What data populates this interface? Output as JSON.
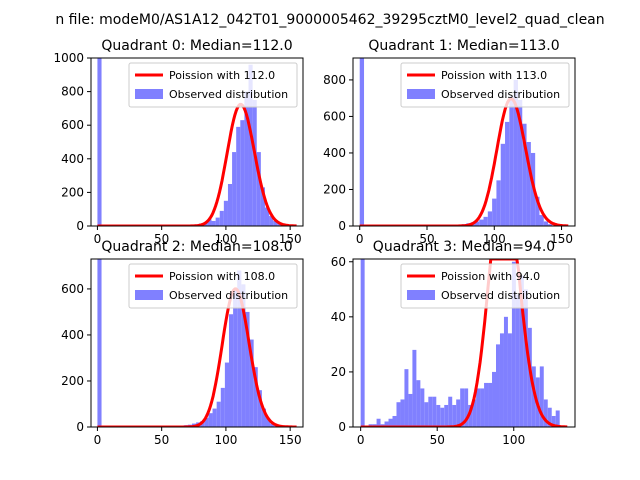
{
  "figure_title": "n file: modeM0/AS1A12_042T01_9000005462_39295cztM0_level2_quad_clean",
  "colors": {
    "fit": "#ff0000",
    "hist": "#8080ff",
    "axis": "#000000",
    "legend_border": "#cccccc"
  },
  "chart_data": [
    {
      "type": "bar+line",
      "title": "Quadrant 0: Median=112.0",
      "xlim": [
        -5,
        160
      ],
      "ylim": [
        0,
        1000
      ],
      "xticks": [
        0,
        50,
        100,
        150
      ],
      "yticks": [
        0,
        200,
        400,
        600,
        800,
        1000
      ],
      "legend_position": "top-right",
      "series": [
        {
          "name": "Poission with 112.0",
          "kind": "line",
          "mean": 112.0
        },
        {
          "name": "Observed distribution",
          "kind": "hist",
          "bin_width": 3.2,
          "bins": [
            {
              "x": 0,
              "y": 1000
            },
            {
              "x": 76,
              "y": 10
            },
            {
              "x": 79.2,
              "y": 15
            },
            {
              "x": 82.4,
              "y": 20
            },
            {
              "x": 85.6,
              "y": 40
            },
            {
              "x": 88.8,
              "y": 30
            },
            {
              "x": 92,
              "y": 50
            },
            {
              "x": 95.2,
              "y": 90
            },
            {
              "x": 98.4,
              "y": 150
            },
            {
              "x": 101.6,
              "y": 250
            },
            {
              "x": 104.8,
              "y": 440
            },
            {
              "x": 108,
              "y": 590
            },
            {
              "x": 111.2,
              "y": 630
            },
            {
              "x": 114.4,
              "y": 800
            },
            {
              "x": 117.6,
              "y": 960
            },
            {
              "x": 120.8,
              "y": 750
            },
            {
              "x": 124,
              "y": 440
            },
            {
              "x": 127.2,
              "y": 230
            },
            {
              "x": 130.4,
              "y": 110
            },
            {
              "x": 133.6,
              "y": 60
            },
            {
              "x": 136.8,
              "y": 30
            },
            {
              "x": 140,
              "y": 15
            },
            {
              "x": 143.2,
              "y": 8
            }
          ]
        }
      ]
    },
    {
      "type": "bar+line",
      "title": "Quadrant 1: Median=113.0",
      "xlim": [
        -5,
        160
      ],
      "ylim": [
        0,
        920
      ],
      "xticks": [
        0,
        50,
        100,
        150
      ],
      "yticks": [
        0,
        200,
        400,
        600,
        800
      ],
      "legend_position": "top-right",
      "series": [
        {
          "name": "Poission with 113.0",
          "kind": "line",
          "mean": 113.0
        },
        {
          "name": "Observed distribution",
          "kind": "hist",
          "bin_width": 3.2,
          "bins": [
            {
              "x": 0,
              "y": 920
            },
            {
              "x": 76,
              "y": 10
            },
            {
              "x": 79.2,
              "y": 15
            },
            {
              "x": 82.4,
              "y": 20
            },
            {
              "x": 85.6,
              "y": 25
            },
            {
              "x": 88.8,
              "y": 35
            },
            {
              "x": 92,
              "y": 50
            },
            {
              "x": 95.2,
              "y": 80
            },
            {
              "x": 98.4,
              "y": 150
            },
            {
              "x": 101.6,
              "y": 250
            },
            {
              "x": 104.8,
              "y": 450
            },
            {
              "x": 108,
              "y": 570
            },
            {
              "x": 111.2,
              "y": 710
            },
            {
              "x": 114.4,
              "y": 800
            },
            {
              "x": 117.6,
              "y": 690
            },
            {
              "x": 120.8,
              "y": 560
            },
            {
              "x": 124,
              "y": 460
            },
            {
              "x": 127.2,
              "y": 400
            },
            {
              "x": 130.4,
              "y": 160
            },
            {
              "x": 133.6,
              "y": 60
            },
            {
              "x": 136.8,
              "y": 25
            },
            {
              "x": 140,
              "y": 10
            }
          ]
        }
      ]
    },
    {
      "type": "bar+line",
      "title": "Quadrant 2: Median=108.0",
      "xlim": [
        -5,
        160
      ],
      "ylim": [
        0,
        730
      ],
      "xticks": [
        0,
        50,
        100,
        150
      ],
      "yticks": [
        0,
        200,
        400,
        600
      ],
      "legend_position": "top-right",
      "series": [
        {
          "name": "Poission with 108.0",
          "kind": "line",
          "mean": 108.0
        },
        {
          "name": "Observed distribution",
          "kind": "hist",
          "bin_width": 3.2,
          "bins": [
            {
              "x": 0,
              "y": 730
            },
            {
              "x": 64,
              "y": 5
            },
            {
              "x": 67.2,
              "y": 8
            },
            {
              "x": 70.4,
              "y": 10
            },
            {
              "x": 73.6,
              "y": 15
            },
            {
              "x": 76.8,
              "y": 20
            },
            {
              "x": 80,
              "y": 25
            },
            {
              "x": 83.2,
              "y": 40
            },
            {
              "x": 86.4,
              "y": 60
            },
            {
              "x": 89.6,
              "y": 80
            },
            {
              "x": 92.8,
              "y": 110
            },
            {
              "x": 96,
              "y": 170
            },
            {
              "x": 99.2,
              "y": 280
            },
            {
              "x": 102.4,
              "y": 490
            },
            {
              "x": 105.6,
              "y": 600
            },
            {
              "x": 108.8,
              "y": 680
            },
            {
              "x": 112,
              "y": 620
            },
            {
              "x": 115.2,
              "y": 500
            },
            {
              "x": 118.4,
              "y": 380
            },
            {
              "x": 121.6,
              "y": 260
            },
            {
              "x": 124.8,
              "y": 160
            },
            {
              "x": 128,
              "y": 80
            },
            {
              "x": 131.2,
              "y": 40
            },
            {
              "x": 134.4,
              "y": 15
            },
            {
              "x": 137.6,
              "y": 8
            }
          ]
        }
      ]
    },
    {
      "type": "bar+line",
      "title": "Quadrant 3: Median=94.0",
      "xlim": [
        -5,
        140
      ],
      "ylim": [
        0,
        61
      ],
      "xticks": [
        0,
        50,
        100
      ],
      "yticks": [
        0,
        20,
        40,
        60
      ],
      "legend_position": "top-right",
      "series": [
        {
          "name": "Poission with 94.0",
          "kind": "line",
          "mean": 94.0
        },
        {
          "name": "Observed distribution",
          "kind": "hist",
          "bin_width": 2.6,
          "bins": [
            {
              "x": 0,
              "y": 61
            },
            {
              "x": 5.2,
              "y": 1
            },
            {
              "x": 7.8,
              "y": 1
            },
            {
              "x": 10.4,
              "y": 3
            },
            {
              "x": 13,
              "y": 1
            },
            {
              "x": 15.6,
              "y": 2
            },
            {
              "x": 18.2,
              "y": 3
            },
            {
              "x": 20.8,
              "y": 4
            },
            {
              "x": 23.4,
              "y": 9
            },
            {
              "x": 26,
              "y": 10
            },
            {
              "x": 28.6,
              "y": 21
            },
            {
              "x": 31.2,
              "y": 12
            },
            {
              "x": 33.8,
              "y": 28
            },
            {
              "x": 36.4,
              "y": 17
            },
            {
              "x": 39,
              "y": 14
            },
            {
              "x": 41.6,
              "y": 9
            },
            {
              "x": 44.2,
              "y": 11
            },
            {
              "x": 46.8,
              "y": 11
            },
            {
              "x": 49.4,
              "y": 8
            },
            {
              "x": 52,
              "y": 7
            },
            {
              "x": 54.6,
              "y": 8
            },
            {
              "x": 57.2,
              "y": 11
            },
            {
              "x": 59.8,
              "y": 8
            },
            {
              "x": 62.4,
              "y": 10
            },
            {
              "x": 65,
              "y": 14
            },
            {
              "x": 67.6,
              "y": 14
            },
            {
              "x": 70.2,
              "y": 8
            },
            {
              "x": 72.8,
              "y": 10
            },
            {
              "x": 75.4,
              "y": 14
            },
            {
              "x": 78,
              "y": 14
            },
            {
              "x": 80.6,
              "y": 16
            },
            {
              "x": 83.2,
              "y": 16
            },
            {
              "x": 85.8,
              "y": 20
            },
            {
              "x": 88.4,
              "y": 30
            },
            {
              "x": 91,
              "y": 34
            },
            {
              "x": 93.6,
              "y": 40
            },
            {
              "x": 96.2,
              "y": 34
            },
            {
              "x": 98.8,
              "y": 60
            },
            {
              "x": 101.4,
              "y": 48
            },
            {
              "x": 104,
              "y": 55
            },
            {
              "x": 106.6,
              "y": 50
            },
            {
              "x": 109.2,
              "y": 36
            },
            {
              "x": 111.8,
              "y": 22
            },
            {
              "x": 114.4,
              "y": 18
            },
            {
              "x": 117,
              "y": 22
            },
            {
              "x": 119.6,
              "y": 10
            },
            {
              "x": 122.2,
              "y": 7
            },
            {
              "x": 124.8,
              "y": 4
            },
            {
              "x": 127.4,
              "y": 6
            }
          ]
        }
      ]
    }
  ]
}
